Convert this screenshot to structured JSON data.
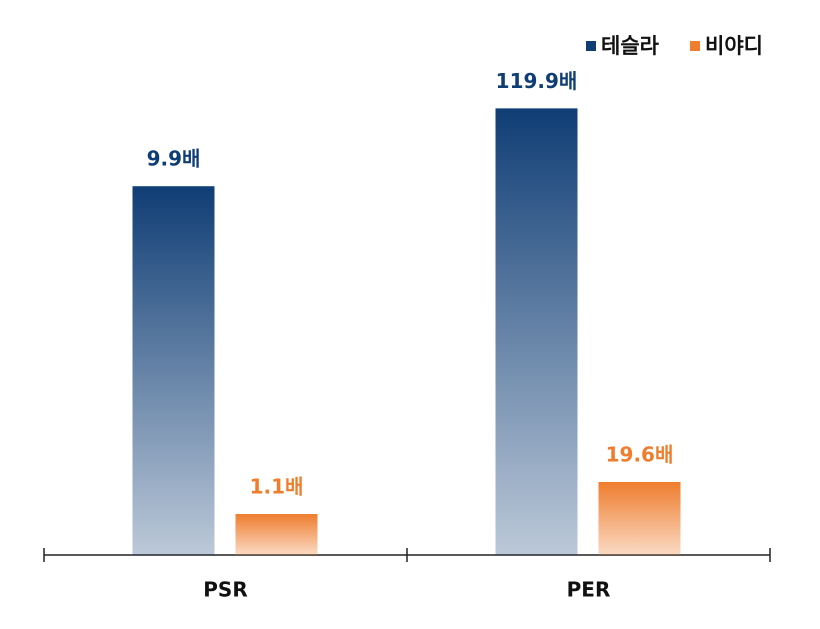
{
  "chart_data": [
    {
      "type": "bar",
      "categories": [
        "PSR"
      ],
      "ylim": [
        0,
        12
      ],
      "series": [
        {
          "name": "테슬라",
          "color": "#0f3d75",
          "values": [
            9.9
          ],
          "value_labels": [
            "9.9배"
          ]
        },
        {
          "name": "비야디",
          "color": "#ef7d2e",
          "values": [
            1.1
          ],
          "value_labels": [
            "1.1배"
          ]
        }
      ]
    },
    {
      "type": "bar",
      "categories": [
        "PER"
      ],
      "ylim": [
        0,
        120
      ],
      "series": [
        {
          "color": "#0f3d75",
          "values": [
            119.9
          ],
          "value_labels": [
            "119.9배"
          ]
        },
        {
          "color": "#ef7d2e",
          "values": [
            19.6
          ],
          "value_labels": [
            "19.6배"
          ]
        }
      ]
    }
  ]
}
